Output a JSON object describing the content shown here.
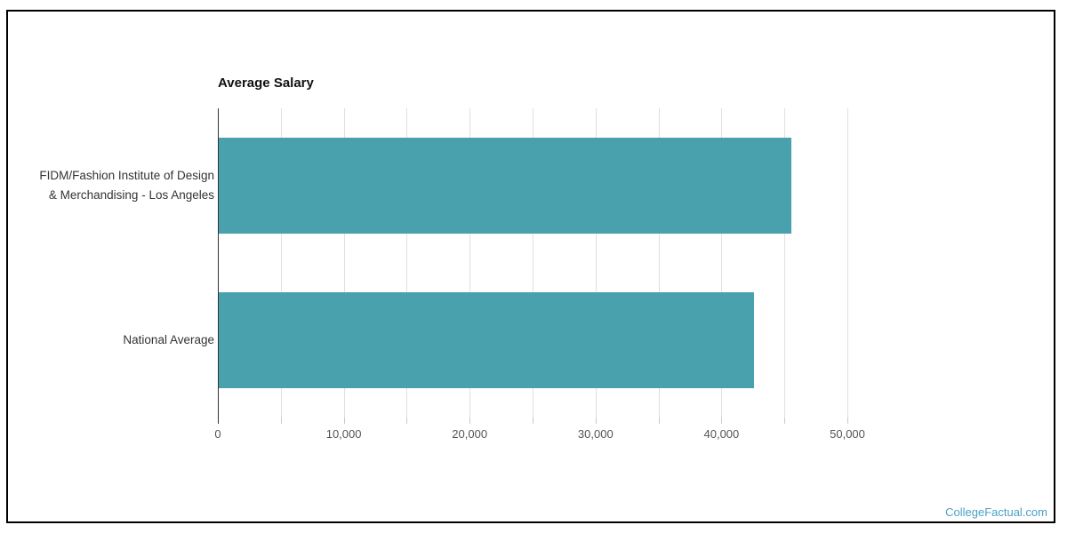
{
  "page": {
    "watermark": "CollegeFactual.com"
  },
  "chart_data": {
    "type": "bar",
    "orientation": "horizontal",
    "title": "Average Salary",
    "categories": [
      "FIDM/Fashion Institute of Design & Merchandising - Los Angeles",
      "National Average"
    ],
    "category_label_lines": [
      [
        "FIDM/Fashion Institute of Design",
        "& Merchandising - Los Angeles"
      ],
      [
        "National Average"
      ]
    ],
    "values": [
      45500,
      42500
    ],
    "xlabel": "",
    "ylabel": "",
    "xlim": [
      0,
      50000
    ],
    "x_tick_labels": [
      "0",
      "10,000",
      "20,000",
      "30,000",
      "40,000",
      "50,000"
    ],
    "x_tick_interval": 10000,
    "gridline_interval": 5000,
    "grid": true,
    "legend": "none",
    "colors": {
      "bar": "#4AA1AE",
      "gridline": "#E0E0E0",
      "axis_line": "#333333",
      "tick": "#C9C9C9",
      "title_text": "#111111",
      "category_text": "#333333",
      "tick_label_text": "#555555",
      "watermark_text": "#4AA0C6",
      "frame_border": "#000000",
      "background": "#FFFFFF"
    }
  }
}
